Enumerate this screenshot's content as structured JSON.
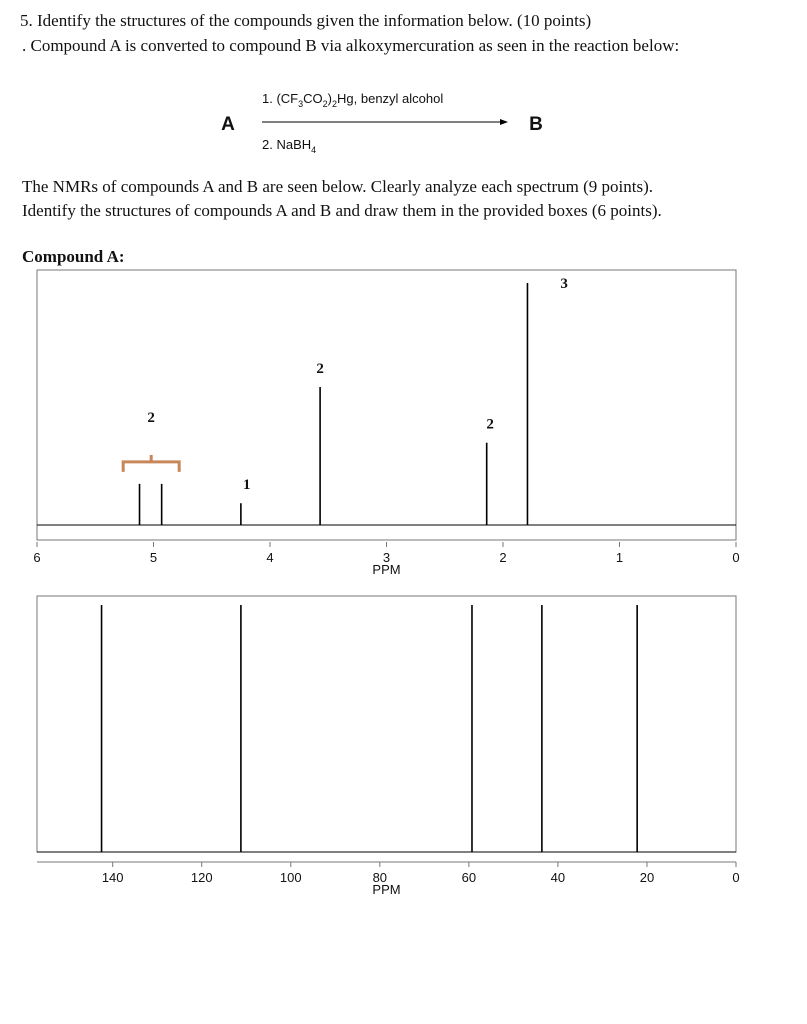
{
  "question": "5. Identify the structures of the compounds given the information below. (10 points)",
  "intro": ". Compound A is converted to compound B via alkoxymercuration as seen in the reaction below:",
  "reaction": {
    "reactant": "A",
    "product": "B",
    "step1": [
      "1. (CF",
      "3",
      "CO",
      "2",
      ")",
      "2",
      "Hg, benzyl alcohol"
    ],
    "step2": [
      "2. NaBH",
      "4"
    ]
  },
  "instructions": [
    "The NMRs of compounds A and B are seen below. Clearly analyze each spectrum (9 points).",
    "Identify the structures of compounds A and B and draw them in the provided boxes (6 points)."
  ],
  "section_label": "Compound A:",
  "chart_data": [
    {
      "type": "nmr",
      "x_label": "PPM",
      "xlim": [
        6,
        0
      ],
      "xticks": [
        6,
        5,
        4,
        3,
        2,
        1,
        0
      ],
      "x": [
        5.12,
        4.93,
        4.25,
        3.57,
        2.14,
        1.79
      ],
      "values": [
        17,
        17,
        9,
        57,
        34,
        100
      ],
      "color": "#000000",
      "annotations": [
        {
          "x": 5.02,
          "integration": 2,
          "bracket": true,
          "bracket_color": "#c8875a"
        },
        {
          "x": 4.2,
          "integration": 1
        },
        {
          "x": 3.57,
          "integration": 2
        },
        {
          "x": 2.11,
          "integration": 2
        },
        {
          "x": 1.63,
          "integration": 3
        }
      ]
    },
    {
      "type": "nmr",
      "x_label": "PPM",
      "xlim": [
        157,
        0
      ],
      "xticks": [
        140,
        120,
        100,
        80,
        60,
        40,
        20,
        0
      ],
      "x": [
        142.5,
        111.2,
        59.3,
        43.6,
        22.2
      ],
      "values": [
        100,
        100,
        100,
        100,
        100
      ],
      "color": "#000000"
    }
  ]
}
